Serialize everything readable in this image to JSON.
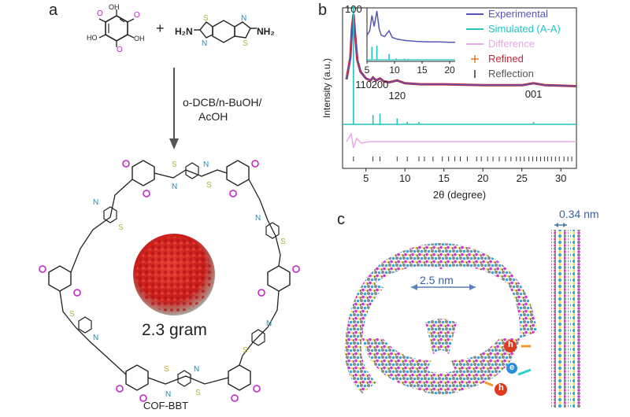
{
  "panels": {
    "a": {
      "letter": "a",
      "reaction_plus": "+",
      "amine_left": "H₂N",
      "amine_right": "NH₂",
      "conditions_line1": "o-DCB/n-BuOH/",
      "conditions_line2": "AcOH",
      "photo_label": "2.3 gram",
      "product_label": "COF-BBT"
    },
    "b": {
      "letter": "b"
    },
    "c": {
      "letter": "c",
      "pore_label": "2.5 nm",
      "stack_label": "0.34 nm",
      "hole_label": "h",
      "electron_label": "e"
    }
  },
  "colors": {
    "experimental": "#5458b4",
    "simulated": "#22c4c4",
    "difference": "#e9a8e6",
    "refined": "#c3283c",
    "reflection": "#333333",
    "oxygen": "#c224c9",
    "sulfur": "#b6b621",
    "nitrogen": "#1a8fc4",
    "cof_red": "#d8231f"
  },
  "chart_data": {
    "type": "line",
    "xlabel": "2θ (degree)",
    "ylabel": "Intensity (a.u.)",
    "xlim": [
      2,
      32
    ],
    "xticks": [
      5,
      10,
      15,
      20,
      25,
      30
    ],
    "legend_position": "top-right",
    "legend": [
      "Experimental",
      "Simulated (A-A)",
      "Difference",
      "Refined",
      "Reflection"
    ],
    "peak_labels": [
      {
        "text": "100",
        "x": 3.4
      },
      {
        "text": "110",
        "x": 5.9
      },
      {
        "text": "200",
        "x": 6.8
      },
      {
        "text": "120",
        "x": 9.0
      },
      {
        "text": "001",
        "x": 26.5
      }
    ],
    "experimental": {
      "x": [
        2.5,
        3.0,
        3.2,
        3.4,
        3.6,
        3.9,
        4.3,
        5.0,
        5.6,
        5.9,
        6.3,
        6.8,
        7.3,
        8.0,
        9.0,
        10,
        12,
        15,
        20,
        25,
        26.5,
        28,
        32
      ],
      "y": [
        0.32,
        0.55,
        0.85,
        1.0,
        0.8,
        0.52,
        0.4,
        0.33,
        0.31,
        0.34,
        0.31,
        0.33,
        0.3,
        0.29,
        0.31,
        0.28,
        0.27,
        0.27,
        0.26,
        0.26,
        0.28,
        0.26,
        0.25
      ]
    },
    "simulated_peaks": {
      "x": [
        3.4,
        5.9,
        6.8,
        9.0,
        10.3,
        11.8,
        26.5
      ],
      "y": [
        1.0,
        0.08,
        0.09,
        0.05,
        0.02,
        0.02,
        0.02
      ]
    },
    "reflection_positions": [
      3.4,
      5.9,
      6.8,
      9.0,
      10.3,
      11.8,
      12.5,
      13.6,
      14.8,
      15.6,
      16.4,
      17.1,
      18.0,
      19.2,
      19.8,
      20.6,
      21.3,
      22.1,
      22.9,
      23.6,
      24.3,
      24.8,
      25.3,
      25.9,
      26.4,
      26.9,
      27.4,
      27.9,
      28.3,
      28.8,
      29.3,
      29.8,
      30.4,
      30.9,
      31.4
    ],
    "inset": {
      "xlim": [
        5,
        21
      ],
      "xticks": [
        5,
        10,
        15,
        20
      ],
      "experimental": {
        "x": [
          5,
          5.5,
          5.9,
          6.3,
          6.8,
          7.2,
          7.6,
          8.2,
          9.0,
          9.6,
          10.5,
          12,
          14,
          16,
          18,
          20,
          21
        ],
        "y": [
          0.45,
          0.55,
          0.9,
          0.65,
          1.0,
          0.6,
          0.45,
          0.42,
          0.55,
          0.4,
          0.36,
          0.33,
          0.31,
          0.3,
          0.3,
          0.29,
          0.29
        ]
      },
      "simulated_peaks": {
        "x": [
          5.9,
          6.8,
          9.0,
          10.3,
          11.8,
          12.5
        ],
        "y": [
          0.55,
          0.6,
          0.25,
          0.06,
          0.05,
          0.04
        ]
      }
    }
  }
}
